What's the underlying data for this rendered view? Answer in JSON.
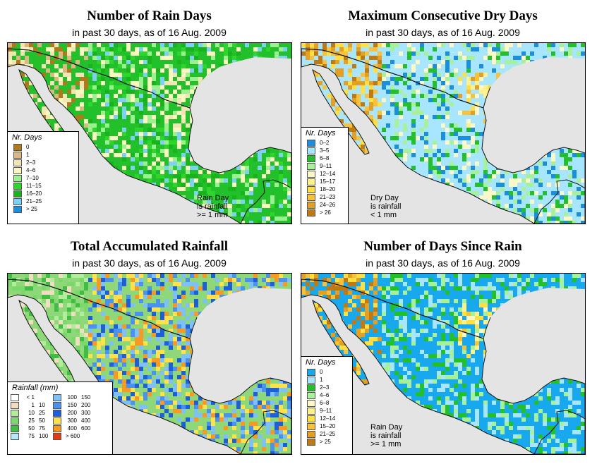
{
  "colors": {
    "land_gray": "#e4e4e4",
    "border": "#111111",
    "rain_days_base": "#22c02a",
    "dry_days_base": "#a8e6ff",
    "accum_base": "#8fd879",
    "since_rain_base": "#18a8ee"
  },
  "panels": {
    "rain_days": {
      "title": "Number of Rain Days",
      "subtitle": "in past 30 days, as of  16 Aug. 2009",
      "legend_title": "Nr. Days",
      "legend": [
        {
          "label": "0",
          "color": "#b07a1c"
        },
        {
          "label": "1",
          "color": "#dcb884"
        },
        {
          "label": "2–3",
          "color": "#f3e4b5"
        },
        {
          "label": "4–6",
          "color": "#fbf5c0"
        },
        {
          "label": "7–10",
          "color": "#9cf090"
        },
        {
          "label": "11–15",
          "color": "#2ed52a"
        },
        {
          "label": "16–20",
          "color": "#17b41b"
        },
        {
          "label": "21–25",
          "color": "#7fd0f5"
        },
        {
          "label": "> 25",
          "color": "#1a8fe0"
        }
      ],
      "note": [
        "Rain Day",
        "is rainfall",
        ">= 1 mm"
      ]
    },
    "dry_days": {
      "title": "Maximum Consecutive Dry Days",
      "subtitle": "in past 30 days, as of  16 Aug. 2009",
      "legend_title": "Nr. Days",
      "legend": [
        {
          "label": "0–2",
          "color": "#1a8fe0"
        },
        {
          "label": "3–5",
          "color": "#a8e6ff"
        },
        {
          "label": "6–8",
          "color": "#22c02a"
        },
        {
          "label": "9–11",
          "color": "#a7f19a"
        },
        {
          "label": "12–14",
          "color": "#fbf7c6"
        },
        {
          "label": "15–17",
          "color": "#fff08a"
        },
        {
          "label": "18–20",
          "color": "#ffe040"
        },
        {
          "label": "21–23",
          "color": "#f7c23a"
        },
        {
          "label": "24–26",
          "color": "#e3a024"
        },
        {
          "label": "> 26",
          "color": "#c17a12"
        }
      ],
      "note": [
        "Dry Day",
        "is rainfall",
        "< 1 mm"
      ]
    },
    "accum": {
      "title": "Total Accumulated Rainfall",
      "subtitle": "in past 30 days, as of  16 Aug. 2009",
      "legend_title": "Rainfall (mm)",
      "legend": [
        {
          "lo": "< 1",
          "hi": "",
          "color": "#ffffff"
        },
        {
          "lo": "100",
          "hi": "150",
          "color": "#7fc0f6"
        },
        {
          "lo": "1",
          "hi": "10",
          "color": "#f2dcc2"
        },
        {
          "lo": "150",
          "hi": "200",
          "color": "#4a92f0"
        },
        {
          "lo": "10",
          "hi": "25",
          "color": "#b4ec9d"
        },
        {
          "lo": "200",
          "hi": "300",
          "color": "#1d5fd8"
        },
        {
          "lo": "25",
          "hi": "50",
          "color": "#7bd86a"
        },
        {
          "lo": "300",
          "hi": "400",
          "color": "#ffe14a"
        },
        {
          "lo": "50",
          "hi": "75",
          "color": "#40be44"
        },
        {
          "lo": "400",
          "hi": "600",
          "color": "#f79a24"
        },
        {
          "lo": "75",
          "hi": "100",
          "color": "#b6e9f8"
        },
        {
          "lo": "> 600",
          "hi": "",
          "color": "#e53a12"
        }
      ]
    },
    "since_rain": {
      "title": "Number of Days Since Rain",
      "subtitle": "in past 30 days, as of  16 Aug. 2009",
      "legend_title": "Nr. Days",
      "legend": [
        {
          "label": "0",
          "color": "#18a8ee"
        },
        {
          "label": "1",
          "color": "#a8e6ff"
        },
        {
          "label": "2–3",
          "color": "#22c02a"
        },
        {
          "label": "4–6",
          "color": "#a7f19a"
        },
        {
          "label": "6–8",
          "color": "#fbf7c6"
        },
        {
          "label": "9–11",
          "color": "#fff08a"
        },
        {
          "label": "12–14",
          "color": "#ffe040"
        },
        {
          "label": "15–20",
          "color": "#f7c23a"
        },
        {
          "label": "21–25",
          "color": "#e3a024"
        },
        {
          "label": "> 25",
          "color": "#c17a12"
        }
      ],
      "note": [
        "Rain Day",
        "is rainfall",
        ">= 1 mm"
      ]
    }
  }
}
